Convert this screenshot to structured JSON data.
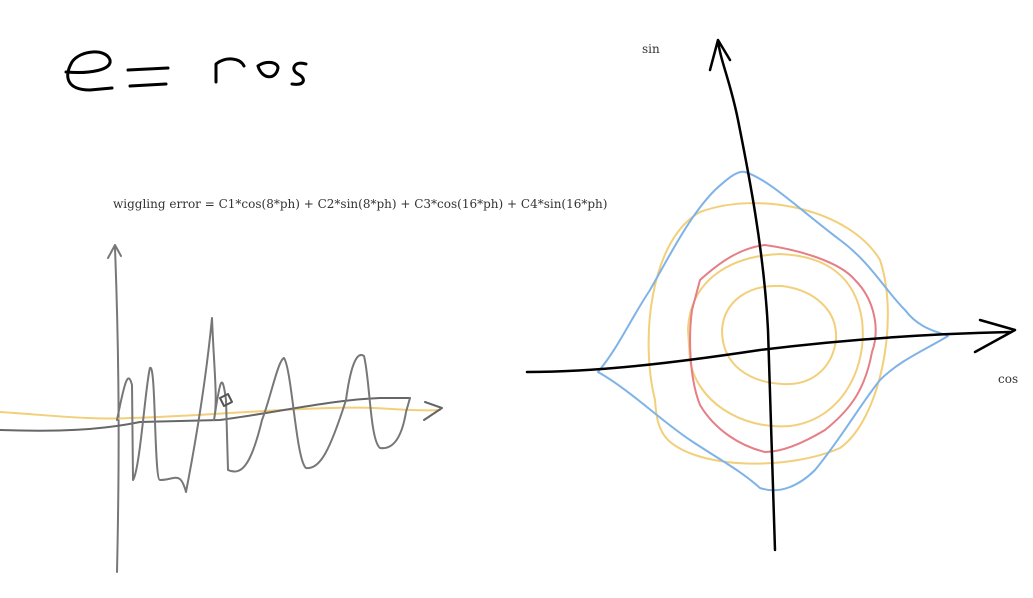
{
  "labels": {
    "sin": "sin",
    "cos": "cos",
    "formula": "wiggling error = C1*cos(8*ph) + C2*sin(8*ph) + C3*cos(16*ph) + C4*sin(16*ph)"
  }
}
